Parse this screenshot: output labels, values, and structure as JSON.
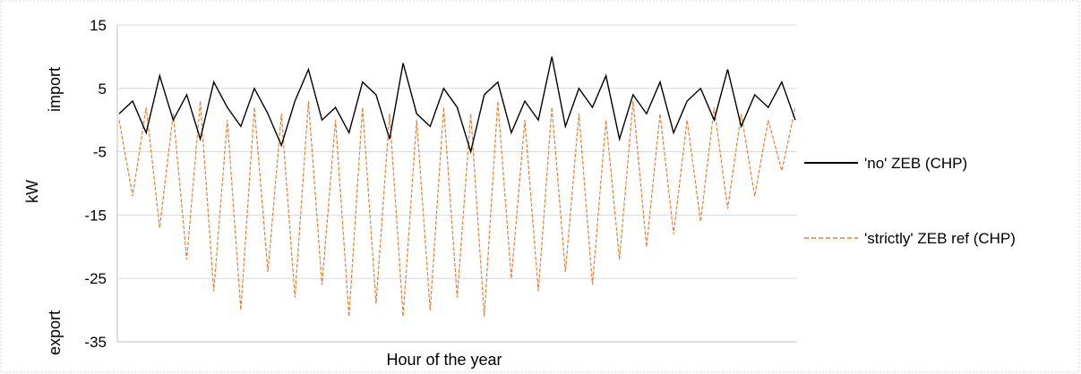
{
  "chart_data": {
    "type": "line",
    "xlabel": "Hour of the year",
    "ylabel": "kW",
    "y_side_labels": {
      "top": "import",
      "bottom": "export"
    },
    "ylim": [
      -35,
      15
    ],
    "yticks": [
      15,
      5,
      -5,
      -15,
      -25,
      -35
    ],
    "x_tick_labels": "none",
    "grid": "horizontal",
    "legend_placement": "right",
    "series": [
      {
        "name": "'no' ZEB (CHP)",
        "color": "#000000",
        "line_style": "solid",
        "x_hours": [
          0,
          24,
          48,
          72,
          96,
          120,
          144,
          168,
          192,
          216,
          240,
          264,
          288,
          312,
          336,
          360,
          384,
          408,
          432,
          456,
          480,
          504,
          528,
          552,
          576,
          600,
          624,
          648,
          672,
          696,
          720,
          744,
          768,
          792,
          816,
          840,
          864,
          888,
          912,
          936,
          960,
          984,
          1008,
          1032,
          1056,
          1080,
          1104,
          1128,
          1152,
          1176,
          1200
        ],
        "values": [
          1,
          3,
          -2,
          7,
          0,
          4,
          -3,
          6,
          2,
          -1,
          5,
          1,
          -4,
          3,
          8,
          0,
          2,
          -2,
          6,
          4,
          -3,
          9,
          1,
          -1,
          5,
          2,
          -5,
          4,
          6,
          -2,
          3,
          0,
          10,
          -1,
          5,
          2,
          7,
          -3,
          4,
          1,
          6,
          -2,
          3,
          5,
          0,
          8,
          -1,
          4,
          2,
          6,
          0
        ]
      },
      {
        "name": "'strictly' ZEB ref (CHP)",
        "color": "#ED7D31",
        "line_style": "dashed",
        "x_hours": [
          0,
          24,
          48,
          72,
          96,
          120,
          144,
          168,
          192,
          216,
          240,
          264,
          288,
          312,
          336,
          360,
          384,
          408,
          432,
          456,
          480,
          504,
          528,
          552,
          576,
          600,
          624,
          648,
          672,
          696,
          720,
          744,
          768,
          792,
          816,
          840,
          864,
          888,
          912,
          936,
          960,
          984,
          1008,
          1032,
          1056,
          1080,
          1104,
          1128,
          1152,
          1176,
          1200
        ],
        "values": [
          0,
          -12,
          2,
          -17,
          1,
          -22,
          3,
          -27,
          0,
          -30,
          2,
          -24,
          1,
          -28,
          3,
          -26,
          0,
          -31,
          2,
          -29,
          1,
          -31,
          0,
          -30,
          2,
          -28,
          1,
          -31,
          3,
          -25,
          0,
          -27,
          2,
          -24,
          1,
          -26,
          0,
          -22,
          3,
          -20,
          1,
          -18,
          0,
          -16,
          2,
          -14,
          1,
          -12,
          0,
          -8,
          2
        ]
      }
    ]
  }
}
